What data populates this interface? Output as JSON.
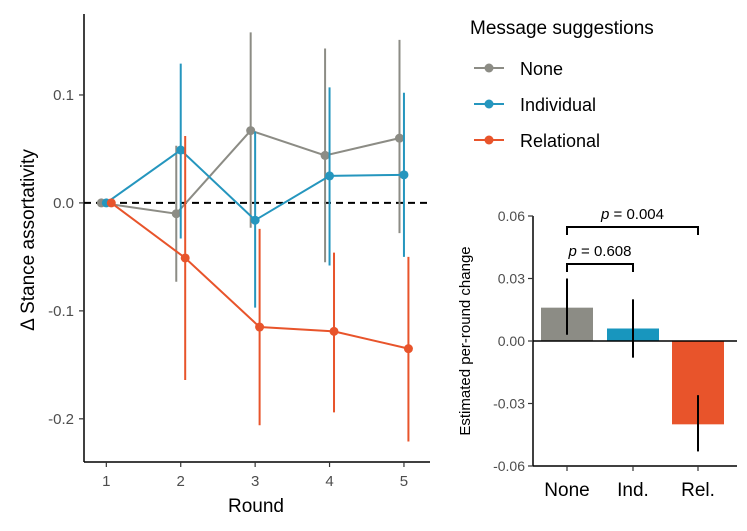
{
  "chart_data": [
    {
      "type": "line",
      "xlabel": "Round",
      "ylabel": "Δ Stance assortativity",
      "x": [
        1,
        2,
        3,
        4,
        5
      ],
      "xticks": [
        "1",
        "2",
        "3",
        "4",
        "5"
      ],
      "yticks": [
        "-0.2",
        "-0.1",
        "0.0",
        "0.1"
      ],
      "ylim": [
        -0.24,
        0.175
      ],
      "xlim": [
        0.7,
        5.35
      ],
      "reference_line": 0,
      "legend": {
        "title": "Message suggestions",
        "position": "top-right"
      },
      "series": [
        {
          "name": "None",
          "color": "#8c8c85",
          "values": [
            0.0,
            -0.01,
            0.067,
            0.044,
            0.06
          ],
          "lower": [
            0.0,
            -0.073,
            -0.023,
            -0.055,
            -0.028
          ],
          "upper": [
            0.0,
            0.053,
            0.158,
            0.143,
            0.151
          ]
        },
        {
          "name": "Individual",
          "color": "#2596be",
          "values": [
            0.0,
            0.049,
            -0.016,
            0.025,
            0.026
          ],
          "lower": [
            0.0,
            -0.033,
            -0.097,
            -0.058,
            -0.05
          ],
          "upper": [
            0.0,
            0.129,
            0.066,
            0.107,
            0.102
          ]
        },
        {
          "name": "Relational",
          "color": "#e8542b",
          "values": [
            0.0,
            -0.051,
            -0.115,
            -0.119,
            -0.135
          ],
          "lower": [
            0.0,
            -0.164,
            -0.206,
            -0.194,
            -0.221
          ],
          "upper": [
            0.0,
            0.062,
            -0.024,
            -0.046,
            -0.05
          ]
        }
      ]
    },
    {
      "type": "bar",
      "ylabel": "Estimated per-round change",
      "categories": [
        "None",
        "Ind.",
        "Rel."
      ],
      "values": [
        0.016,
        0.006,
        -0.04
      ],
      "lower": [
        0.003,
        -0.008,
        -0.053
      ],
      "upper": [
        0.03,
        0.02,
        -0.026
      ],
      "colors": [
        "#8c8c85",
        "#1896be",
        "#e8542b"
      ],
      "ylim": [
        -0.06,
        0.06
      ],
      "yticks": [
        "-0.06",
        "-0.03",
        "0.00",
        "0.03",
        "0.06"
      ],
      "annotations": [
        {
          "p_symbol": "p",
          "text": " = 0.608",
          "from": 0,
          "to": 1
        },
        {
          "p_symbol": "p",
          "text": " = 0.004",
          "from": 0,
          "to": 2
        }
      ]
    }
  ]
}
